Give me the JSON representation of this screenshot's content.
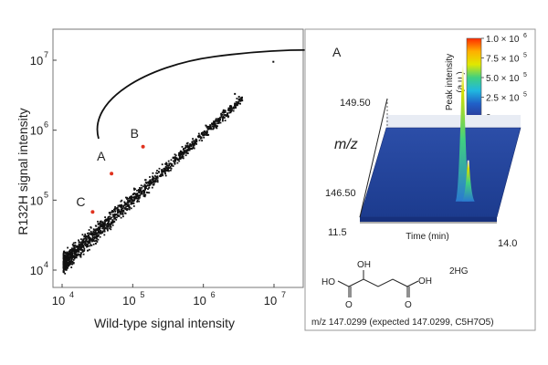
{
  "chart_data": [
    {
      "type": "scatter",
      "xlabel": "Wild-type signal intensity",
      "ylabel": "R132H signal intensity",
      "x_scale": "log",
      "y_scale": "log",
      "xlim": [
        10000,
        10000000
      ],
      "ylim": [
        10000,
        10000000
      ],
      "grid": false,
      "x_ticks": [
        {
          "value": 10000,
          "base": "10",
          "exp": "4"
        },
        {
          "value": 100000,
          "base": "10",
          "exp": "5"
        },
        {
          "value": 1000000,
          "base": "10",
          "exp": "6"
        },
        {
          "value": 10000000,
          "base": "10",
          "exp": "7"
        }
      ],
      "y_ticks": [
        {
          "value": 10000,
          "base": "10",
          "exp": "4"
        },
        {
          "value": 100000,
          "base": "10",
          "exp": "5"
        },
        {
          "value": 1000000,
          "base": "10",
          "exp": "6"
        },
        {
          "value": 10000000,
          "base": "10",
          "exp": "7"
        }
      ],
      "background_series": {
        "color": "#111111",
        "trend": {
          "slope": 0.93,
          "intercept": 0.36
        },
        "points": [
          [
            11000,
            13000
          ],
          [
            12000,
            11500
          ],
          [
            13000,
            15000
          ],
          [
            14500,
            12500
          ],
          [
            16000,
            18000
          ],
          [
            18000,
            16000
          ],
          [
            20000,
            22000
          ],
          [
            23000,
            19000
          ],
          [
            26000,
            27000
          ],
          [
            30000,
            24000
          ],
          [
            34000,
            34000
          ],
          [
            40000,
            36000
          ],
          [
            46000,
            45000
          ],
          [
            54000,
            50000
          ],
          [
            62000,
            60000
          ],
          [
            72000,
            66000
          ],
          [
            85000,
            82000
          ],
          [
            100000,
            90000
          ],
          [
            120000,
            115000
          ],
          [
            145000,
            130000
          ],
          [
            175000,
            165000
          ],
          [
            210000,
            190000
          ],
          [
            260000,
            240000
          ],
          [
            320000,
            290000
          ],
          [
            400000,
            370000
          ],
          [
            500000,
            450000
          ],
          [
            650000,
            600000
          ],
          [
            800000,
            720000
          ],
          [
            1050000,
            950000
          ],
          [
            1400000,
            1250000
          ],
          [
            1800000,
            1650000
          ],
          [
            2400000,
            2200000
          ],
          [
            3200000,
            3000000
          ],
          [
            2800000,
            3300000
          ],
          [
            9800000,
            9500000
          ]
        ]
      },
      "highlighted_points": [
        {
          "label": "A",
          "x": 50000,
          "y": 240000,
          "color": "#e0321e"
        },
        {
          "label": "B",
          "x": 140000,
          "y": 580000,
          "color": "#e0321e"
        },
        {
          "label": "C",
          "x": 27000,
          "y": 68000,
          "color": "#e0321e"
        }
      ],
      "arrow": {
        "from": "A",
        "to_label": "A"
      }
    },
    {
      "type": "heatmap",
      "title": "A",
      "ylabel": "m/z",
      "xlabel": "Time (min)",
      "xlim": [
        11.5,
        14.0
      ],
      "ylim": [
        146.5,
        149.5
      ],
      "x_tick_labels": [
        "11.5",
        "14.0"
      ],
      "y_tick_labels": [
        "149.50",
        "146.50"
      ],
      "colorbar": {
        "label_line1": "Peak intensity",
        "label_line2": "(a.u.)",
        "ticks": [
          {
            "mantissa": "1.0",
            "exp": "6"
          },
          {
            "mantissa": "7.5",
            "exp": "5"
          },
          {
            "mantissa": "5.0",
            "exp": "5"
          },
          {
            "mantissa": "2.5",
            "exp": "5"
          },
          {
            "mantissa": "0",
            "exp": ""
          }
        ],
        "colors": [
          "#ff2a00",
          "#ffb000",
          "#e0e800",
          "#40d080",
          "#20b8e0",
          "#2060c8",
          "#2a3a9a"
        ]
      },
      "peaks": [
        {
          "mz": 147.03,
          "time": 13.3,
          "relative_intensity": 1.0
        },
        {
          "mz": 147.03,
          "time": 13.4,
          "relative_intensity": 0.3
        }
      ]
    }
  ],
  "structure": {
    "name": "2HG",
    "ho_left": "HO",
    "oh_top": "OH",
    "oh_right": "OH",
    "o": "O",
    "caption": "m/z 147.0299 (expected 147.0299, C5H7O5)"
  }
}
